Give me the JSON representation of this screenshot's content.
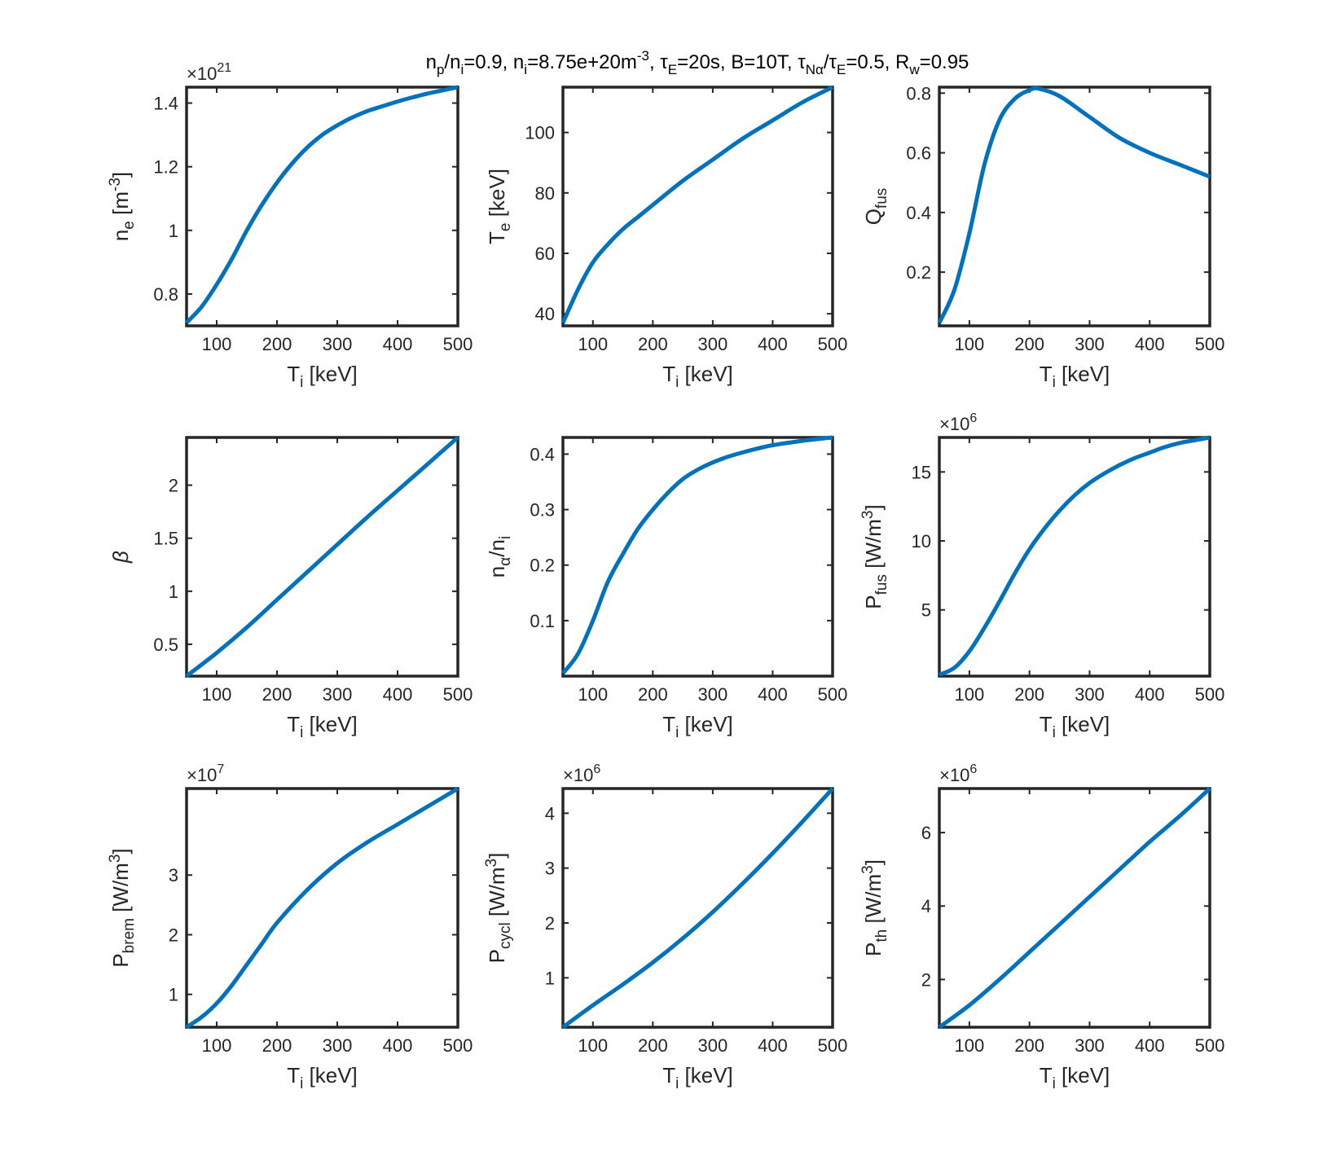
{
  "title": {
    "parts": [
      {
        "t": "n"
      },
      {
        "t": "p",
        "s": "sub"
      },
      {
        "t": "/n"
      },
      {
        "t": "i",
        "s": "sub"
      },
      {
        "t": "=0.9, n"
      },
      {
        "t": "i",
        "s": "sub"
      },
      {
        "t": "=8.75e+20m"
      },
      {
        "t": "-3",
        "s": "sup"
      },
      {
        "t": ", τ"
      },
      {
        "t": "E",
        "s": "sub"
      },
      {
        "t": "=20s, B=10T, τ"
      },
      {
        "t": "Nα",
        "s": "sub"
      },
      {
        "t": "/τ"
      },
      {
        "t": "E",
        "s": "sub"
      },
      {
        "t": "=0.5, R"
      },
      {
        "t": "w",
        "s": "sub"
      },
      {
        "t": "=0.95"
      }
    ]
  },
  "colors": {
    "line": "#0072BD",
    "axis": "#262626"
  },
  "chart_data": [
    {
      "type": "line",
      "id": "ne",
      "x": [
        50,
        75,
        100,
        125,
        150,
        175,
        200,
        225,
        250,
        275,
        300,
        325,
        350,
        375,
        400,
        425,
        450,
        475,
        500
      ],
      "y": [
        0.71,
        0.76,
        0.83,
        0.91,
        1.0,
        1.08,
        1.15,
        1.21,
        1.26,
        1.3,
        1.33,
        1.355,
        1.375,
        1.39,
        1.405,
        1.418,
        1.43,
        1.44,
        1.45
      ],
      "xlim": [
        50,
        500
      ],
      "ylim": [
        0.7,
        1.45
      ],
      "xticks": [
        100,
        200,
        300,
        400,
        500
      ],
      "xticklabels": [
        "100",
        "200",
        "300",
        "400",
        "500"
      ],
      "yticks": [
        0.8,
        1.0,
        1.2,
        1.4
      ],
      "yticklabels": [
        "0.8",
        "1",
        "1.2",
        "1.4"
      ],
      "xlabel": [
        {
          "t": "T"
        },
        {
          "t": "i",
          "s": "sub"
        },
        {
          "t": " [keV]"
        }
      ],
      "ylabel": [
        {
          "t": "n"
        },
        {
          "t": "e",
          "s": "sub"
        },
        {
          "t": " [m"
        },
        {
          "t": "-3",
          "s": "sup"
        },
        {
          "t": "]"
        }
      ],
      "exponent": [
        {
          "t": "×10"
        },
        {
          "t": "21",
          "s": "sup"
        }
      ]
    },
    {
      "type": "line",
      "id": "te",
      "x": [
        50,
        75,
        100,
        125,
        150,
        175,
        200,
        250,
        300,
        350,
        400,
        450,
        500
      ],
      "y": [
        37,
        48,
        57,
        63,
        68,
        72,
        76,
        84,
        91,
        98,
        104,
        110,
        115
      ],
      "xlim": [
        50,
        500
      ],
      "ylim": [
        36,
        115
      ],
      "xticks": [
        100,
        200,
        300,
        400,
        500
      ],
      "xticklabels": [
        "100",
        "200",
        "300",
        "400",
        "500"
      ],
      "yticks": [
        40,
        60,
        80,
        100
      ],
      "yticklabels": [
        "40",
        "60",
        "80",
        "100"
      ],
      "xlabel": [
        {
          "t": "T"
        },
        {
          "t": "i",
          "s": "sub"
        },
        {
          "t": " [keV]"
        }
      ],
      "ylabel": [
        {
          "t": "T"
        },
        {
          "t": "e",
          "s": "sub"
        },
        {
          "t": " [keV]"
        }
      ]
    },
    {
      "type": "line",
      "id": "qfus",
      "x": [
        50,
        75,
        100,
        125,
        150,
        175,
        200,
        215,
        250,
        300,
        350,
        400,
        450,
        500
      ],
      "y": [
        0.03,
        0.14,
        0.33,
        0.56,
        0.71,
        0.78,
        0.81,
        0.815,
        0.79,
        0.72,
        0.65,
        0.6,
        0.56,
        0.52
      ],
      "xlim": [
        50,
        500
      ],
      "ylim": [
        0.02,
        0.82
      ],
      "xticks": [
        100,
        200,
        300,
        400,
        500
      ],
      "xticklabels": [
        "100",
        "200",
        "300",
        "400",
        "500"
      ],
      "yticks": [
        0.2,
        0.4,
        0.6,
        0.8
      ],
      "yticklabels": [
        "0.2",
        "0.4",
        "0.6",
        "0.8"
      ],
      "xlabel": [
        {
          "t": "T"
        },
        {
          "t": "i",
          "s": "sub"
        },
        {
          "t": " [keV]"
        }
      ],
      "ylabel": [
        {
          "t": "Q"
        },
        {
          "t": "fus",
          "s": "sub"
        }
      ]
    },
    {
      "type": "line",
      "id": "beta",
      "x": [
        50,
        100,
        150,
        200,
        250,
        300,
        350,
        400,
        450,
        500
      ],
      "y": [
        0.2,
        0.42,
        0.66,
        0.92,
        1.18,
        1.44,
        1.7,
        1.95,
        2.2,
        2.45
      ],
      "xlim": [
        50,
        500
      ],
      "ylim": [
        0.2,
        2.45
      ],
      "xticks": [
        100,
        200,
        300,
        400,
        500
      ],
      "xticklabels": [
        "100",
        "200",
        "300",
        "400",
        "500"
      ],
      "yticks": [
        0.5,
        1.0,
        1.5,
        2.0
      ],
      "yticklabels": [
        "0.5",
        "1",
        "1.5",
        "2"
      ],
      "xlabel": [
        {
          "t": "T"
        },
        {
          "t": "i",
          "s": "sub"
        },
        {
          "t": " [keV]"
        }
      ],
      "ylabel": [
        {
          "t": "β",
          "s": "italic"
        }
      ]
    },
    {
      "type": "line",
      "id": "nalpha",
      "x": [
        50,
        75,
        100,
        125,
        150,
        175,
        200,
        225,
        250,
        275,
        300,
        325,
        350,
        375,
        400,
        450,
        500
      ],
      "y": [
        0.005,
        0.04,
        0.1,
        0.17,
        0.22,
        0.265,
        0.3,
        0.33,
        0.355,
        0.372,
        0.385,
        0.395,
        0.403,
        0.41,
        0.416,
        0.424,
        0.43
      ],
      "xlim": [
        50,
        500
      ],
      "ylim": [
        0.0,
        0.43
      ],
      "xticks": [
        100,
        200,
        300,
        400,
        500
      ],
      "xticklabels": [
        "100",
        "200",
        "300",
        "400",
        "500"
      ],
      "yticks": [
        0.1,
        0.2,
        0.3,
        0.4
      ],
      "yticklabels": [
        "0.1",
        "0.2",
        "0.3",
        "0.4"
      ],
      "xlabel": [
        {
          "t": "T"
        },
        {
          "t": "i",
          "s": "sub"
        },
        {
          "t": " [keV]"
        }
      ],
      "ylabel": [
        {
          "t": "n"
        },
        {
          "t": "α",
          "s": "sub"
        },
        {
          "t": "/n"
        },
        {
          "t": "i",
          "s": "sub"
        }
      ]
    },
    {
      "type": "line",
      "id": "pfus",
      "x": [
        50,
        75,
        100,
        125,
        150,
        175,
        200,
        225,
        250,
        275,
        300,
        325,
        350,
        375,
        400,
        425,
        450,
        475,
        500
      ],
      "y": [
        0.3,
        0.8,
        2.0,
        3.7,
        5.6,
        7.6,
        9.4,
        10.9,
        12.2,
        13.3,
        14.2,
        14.9,
        15.5,
        16.0,
        16.4,
        16.8,
        17.1,
        17.3,
        17.5
      ],
      "xlim": [
        50,
        500
      ],
      "ylim": [
        0.2,
        17.5
      ],
      "xticks": [
        100,
        200,
        300,
        400,
        500
      ],
      "xticklabels": [
        "100",
        "200",
        "300",
        "400",
        "500"
      ],
      "yticks": [
        5,
        10,
        15
      ],
      "yticklabels": [
        "5",
        "10",
        "15"
      ],
      "xlabel": [
        {
          "t": "T"
        },
        {
          "t": "i",
          "s": "sub"
        },
        {
          "t": " [keV]"
        }
      ],
      "ylabel": [
        {
          "t": "P"
        },
        {
          "t": "fus",
          "s": "sub"
        },
        {
          "t": " [W/m"
        },
        {
          "t": "3",
          "s": "sup"
        },
        {
          "t": "]"
        }
      ],
      "exponent": [
        {
          "t": "×10"
        },
        {
          "t": "6",
          "s": "sup"
        }
      ]
    },
    {
      "type": "line",
      "id": "pbrem",
      "x": [
        50,
        75,
        100,
        125,
        150,
        175,
        200,
        250,
        300,
        350,
        400,
        450,
        500
      ],
      "y": [
        0.45,
        0.62,
        0.85,
        1.15,
        1.5,
        1.85,
        2.2,
        2.75,
        3.2,
        3.55,
        3.85,
        4.15,
        4.45
      ],
      "xlim": [
        50,
        500
      ],
      "ylim": [
        0.45,
        4.45
      ],
      "xticks": [
        100,
        200,
        300,
        400,
        500
      ],
      "xticklabels": [
        "100",
        "200",
        "300",
        "400",
        "500"
      ],
      "yticks": [
        1,
        2,
        3
      ],
      "yticklabels": [
        "1",
        "2",
        "3"
      ],
      "xlabel": [
        {
          "t": "T"
        },
        {
          "t": "i",
          "s": "sub"
        },
        {
          "t": " [keV]"
        }
      ],
      "ylabel": [
        {
          "t": "P"
        },
        {
          "t": "brem",
          "s": "sub"
        },
        {
          "t": " [W/m"
        },
        {
          "t": "3",
          "s": "sup"
        },
        {
          "t": "]"
        }
      ],
      "exponent": [
        {
          "t": "×10"
        },
        {
          "t": "7",
          "s": "sup"
        }
      ]
    },
    {
      "type": "line",
      "id": "pcycl",
      "x": [
        50,
        100,
        150,
        200,
        250,
        300,
        350,
        400,
        450,
        500
      ],
      "y": [
        0.1,
        0.5,
        0.88,
        1.28,
        1.72,
        2.2,
        2.72,
        3.27,
        3.85,
        4.45
      ],
      "xlim": [
        50,
        500
      ],
      "ylim": [
        0.1,
        4.45
      ],
      "xticks": [
        100,
        200,
        300,
        400,
        500
      ],
      "xticklabels": [
        "100",
        "200",
        "300",
        "400",
        "500"
      ],
      "yticks": [
        1,
        2,
        3,
        4
      ],
      "yticklabels": [
        "1",
        "2",
        "3",
        "4"
      ],
      "xlabel": [
        {
          "t": "T"
        },
        {
          "t": "i",
          "s": "sub"
        },
        {
          "t": " [keV]"
        }
      ],
      "ylabel": [
        {
          "t": "P"
        },
        {
          "t": "cycl",
          "s": "sub"
        },
        {
          "t": " [W/m"
        },
        {
          "t": "3",
          "s": "sup"
        },
        {
          "t": "]"
        }
      ],
      "exponent": [
        {
          "t": "×10"
        },
        {
          "t": "6",
          "s": "sup"
        }
      ]
    },
    {
      "type": "line",
      "id": "pth",
      "x": [
        50,
        100,
        150,
        200,
        250,
        300,
        350,
        400,
        450,
        500
      ],
      "y": [
        0.7,
        1.3,
        2.0,
        2.75,
        3.5,
        4.25,
        5.0,
        5.75,
        6.45,
        7.2
      ],
      "xlim": [
        50,
        500
      ],
      "ylim": [
        0.7,
        7.2
      ],
      "xticks": [
        100,
        200,
        300,
        400,
        500
      ],
      "xticklabels": [
        "100",
        "200",
        "300",
        "400",
        "500"
      ],
      "yticks": [
        2,
        4,
        6
      ],
      "yticklabels": [
        "2",
        "4",
        "6"
      ],
      "xlabel": [
        {
          "t": "T"
        },
        {
          "t": "i",
          "s": "sub"
        },
        {
          "t": " [keV]"
        }
      ],
      "ylabel": [
        {
          "t": "P"
        },
        {
          "t": "th",
          "s": "sub"
        },
        {
          "t": " [W/m"
        },
        {
          "t": "3",
          "s": "sup"
        },
        {
          "t": "]"
        }
      ],
      "exponent": [
        {
          "t": "×10"
        },
        {
          "t": "6",
          "s": "sup"
        }
      ]
    }
  ]
}
